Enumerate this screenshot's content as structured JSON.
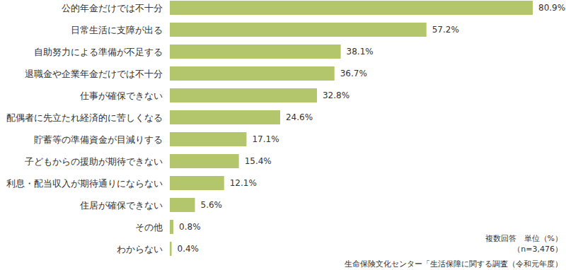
{
  "chart_data": {
    "type": "bar",
    "orientation": "horizontal",
    "categories": [
      "公的年金だけでは不十分",
      "日常生活に支障が出る",
      "自助努力による準備が不足する",
      "退職金や企業年金だけでは不十分",
      "仕事が確保できない",
      "配偶者に先立たれ経済的に苦しくなる",
      "貯蓄等の準備資金が目減りする",
      "子どもからの援助が期待できない",
      "利息・配当収入が期待通りにならない",
      "住居が確保できない",
      "その他",
      "わからない"
    ],
    "values": [
      80.9,
      57.2,
      38.1,
      36.7,
      32.8,
      24.6,
      17.1,
      15.4,
      12.1,
      5.6,
      0.8,
      0.4
    ],
    "value_labels": [
      "80.9%",
      "57.2%",
      "38.1%",
      "36.7%",
      "32.8%",
      "24.6%",
      "17.1%",
      "15.4%",
      "12.1%",
      "5.6%",
      "0.8%",
      "0.4%"
    ],
    "color": "#b3c66b",
    "xlim": [
      0,
      85
    ],
    "data_labels": true,
    "tick_labels": "y",
    "grid": false,
    "annotations": [
      "複数回答　単位（%）",
      "（n=3,476）",
      "生命保険文化センター「生活保障に関する調査（令和元年度）"
    ]
  }
}
